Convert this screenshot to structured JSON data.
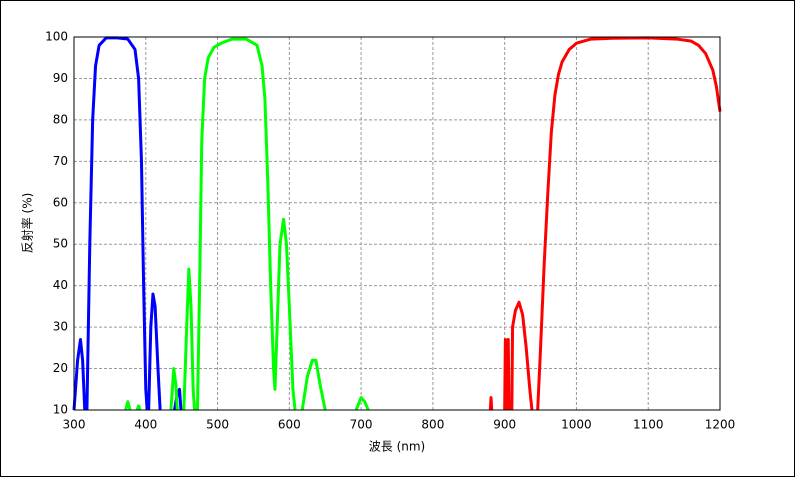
{
  "chart_data": {
    "type": "line",
    "xlabel": "波長 (nm)",
    "ylabel": "反射率 (%)",
    "xlim": [
      300,
      1200
    ],
    "ylim": [
      10,
      100
    ],
    "xticks": [
      300,
      400,
      500,
      600,
      700,
      800,
      900,
      1000,
      1100,
      1200
    ],
    "yticks": [
      10,
      20,
      30,
      40,
      50,
      60,
      70,
      80,
      90,
      100
    ],
    "grid": true,
    "series": [
      {
        "color": "#0000ff",
        "x": [
          300,
          305,
          309,
          312,
          315,
          null,
          318,
          322,
          326,
          330,
          335,
          345,
          360,
          375,
          385,
          390,
          394,
          397,
          400,
          402,
          null,
          404,
          407,
          410,
          413,
          417,
          420,
          null,
          440,
          444,
          447,
          449
        ],
        "values": [
          10,
          22,
          27,
          22,
          10,
          null,
          10,
          50,
          80,
          93,
          98,
          99.8,
          99.8,
          99.5,
          97,
          90,
          70,
          40,
          15,
          10,
          null,
          10,
          30,
          38,
          35,
          20,
          10,
          null,
          10,
          14,
          15,
          10
        ]
      },
      {
        "color": "#00ff00",
        "x": [
          372,
          375,
          378,
          null,
          388,
          390,
          392,
          null,
          435,
          439,
          442,
          444,
          null,
          453,
          457,
          460,
          463,
          466,
          468,
          null,
          472,
          475,
          478,
          482,
          487,
          495,
          505,
          520,
          540,
          555,
          562,
          566,
          570,
          574,
          578,
          580,
          583,
          587,
          592,
          596,
          600,
          605,
          608,
          null,
          618,
          625,
          632,
          637,
          643,
          650,
          null,
          693,
          700,
          705,
          710
        ],
        "values": [
          10,
          12,
          10,
          null,
          10,
          11,
          10,
          null,
          10,
          20,
          16,
          10,
          null,
          10,
          30,
          44,
          35,
          15,
          10,
          null,
          10,
          40,
          75,
          90,
          95,
          97.5,
          98.5,
          99.5,
          99.5,
          98,
          93,
          85,
          65,
          40,
          20,
          15,
          30,
          50,
          56,
          50,
          35,
          15,
          10,
          null,
          10,
          18,
          22,
          22,
          16,
          10,
          null,
          10,
          13,
          12,
          10
        ]
      },
      {
        "color": "#ff0000",
        "x": [
          880,
          881,
          882,
          null,
          900,
          901,
          902,
          null,
          904,
          905,
          906,
          null,
          910,
          911,
          915,
          920,
          925,
          930,
          935,
          938,
          null,
          946,
          950,
          955,
          960,
          965,
          970,
          975,
          980,
          990,
          1000,
          1020,
          1050,
          1100,
          1140,
          1160,
          1170,
          1180,
          1190,
          1195,
          1200
        ],
        "values": [
          10,
          13,
          10,
          null,
          10,
          27,
          10,
          null,
          10,
          27,
          10,
          null,
          10,
          30,
          34,
          36,
          33,
          25,
          15,
          10,
          null,
          10,
          25,
          45,
          62,
          77,
          86,
          91,
          94,
          97,
          98.5,
          99.5,
          99.7,
          99.8,
          99.5,
          99,
          98,
          96,
          92,
          88,
          82
        ]
      }
    ]
  }
}
